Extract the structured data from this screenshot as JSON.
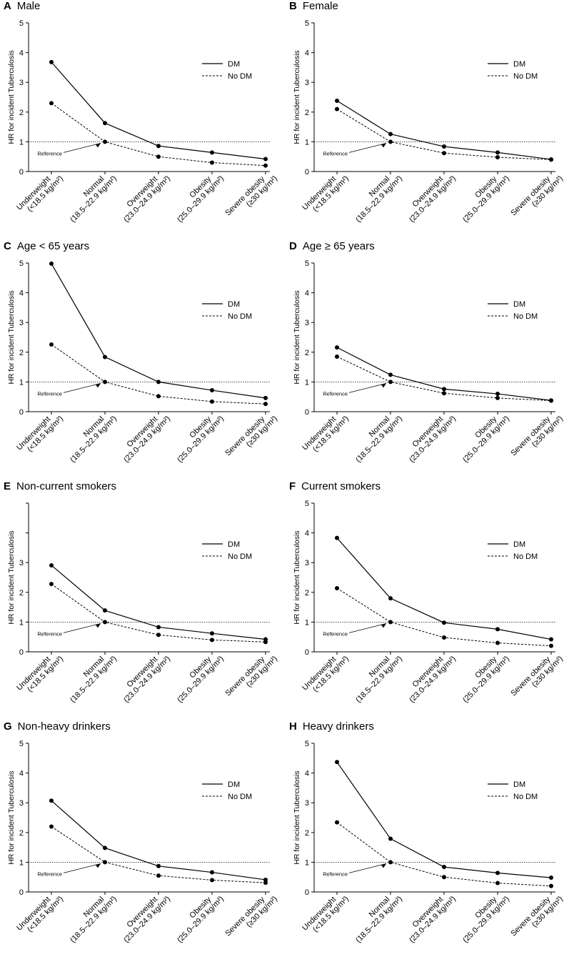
{
  "figure": {
    "legend_labels": [
      "DM",
      "No DM"
    ],
    "reference_label": "Reference",
    "ylabel": "HR for incident Tuberculosis",
    "categories": [
      {
        "line1": "Underweight",
        "line2": "(<18.5 kg/m²)"
      },
      {
        "line1": "Normal",
        "line2": "(18.5–22.9 kg/m²)"
      },
      {
        "line1": "Overweight",
        "line2": "(23.0–24.9 kg/m²)"
      },
      {
        "line1": "Obesity",
        "line2": "(25.0–29.9 kg/m²)"
      },
      {
        "line1": "Severe obesity",
        "line2": "(≥30 kg/m²)"
      }
    ]
  },
  "chart_data": [
    {
      "id": "A",
      "letter": "A",
      "title": "Male",
      "type": "line",
      "categories": [
        "Underweight (<18.5 kg/m²)",
        "Normal (18.5–22.9 kg/m²)",
        "Overweight (23.0–24.9 kg/m²)",
        "Obesity (25.0–29.9 kg/m²)",
        "Severe obesity (≥30 kg/m²)"
      ],
      "series": [
        {
          "name": "DM",
          "values": [
            3.68,
            1.63,
            0.86,
            0.64,
            0.42
          ]
        },
        {
          "name": "No DM",
          "values": [
            2.3,
            1.0,
            0.5,
            0.3,
            0.2
          ]
        }
      ],
      "ylabel": "HR for incident Tuberculosis",
      "ylim": [
        0,
        5
      ],
      "yticks": [
        "0",
        "1",
        "2",
        "3",
        "4",
        "5"
      ],
      "reference_line": 1.0
    },
    {
      "id": "B",
      "letter": "B",
      "title": "Female",
      "type": "line",
      "categories": [
        "Underweight (<18.5 kg/m²)",
        "Normal (18.5–22.9 kg/m²)",
        "Overweight (23.0–24.9 kg/m²)",
        "Obesity (25.0–29.9 kg/m²)",
        "Severe obesity (≥30 kg/m²)"
      ],
      "series": [
        {
          "name": "DM",
          "values": [
            2.38,
            1.26,
            0.84,
            0.64,
            0.41
          ]
        },
        {
          "name": "No DM",
          "values": [
            2.1,
            1.0,
            0.62,
            0.48,
            0.4
          ]
        }
      ],
      "ylabel": "HR for incident Tuberculosis",
      "ylim": [
        0,
        5
      ],
      "yticks": [
        "0",
        "1",
        "2",
        "3",
        "4",
        "5"
      ],
      "reference_line": 1.0
    },
    {
      "id": "C",
      "letter": "C",
      "title": "Age < 65 years",
      "type": "line",
      "categories": [
        "Underweight (<18.5 kg/m²)",
        "Normal (18.5–22.9 kg/m²)",
        "Overweight (23.0–24.9 kg/m²)",
        "Obesity (25.0–29.9 kg/m²)",
        "Severe obesity (≥30 kg/m²)"
      ],
      "series": [
        {
          "name": "DM",
          "values": [
            4.98,
            1.84,
            1.0,
            0.72,
            0.46
          ]
        },
        {
          "name": "No DM",
          "values": [
            2.26,
            1.0,
            0.52,
            0.34,
            0.26
          ]
        }
      ],
      "ylabel": "HR for incident Tuberculosis",
      "ylim": [
        0,
        5
      ],
      "yticks": [
        "0",
        "1",
        "2",
        "3",
        "4",
        "5"
      ],
      "reference_line": 1.0
    },
    {
      "id": "D",
      "letter": "D",
      "title": "Age ≥ 65 years",
      "type": "line",
      "categories": [
        "Underweight (<18.5 kg/m²)",
        "Normal (18.5–22.9 kg/m²)",
        "Overweight (23.0–24.9 kg/m²)",
        "Obesity (25.0–29.9 kg/m²)",
        "Severe obesity (≥30 kg/m²)"
      ],
      "series": [
        {
          "name": "DM",
          "values": [
            2.16,
            1.24,
            0.76,
            0.6,
            0.38
          ]
        },
        {
          "name": "No DM",
          "values": [
            1.85,
            1.0,
            0.62,
            0.46,
            0.37
          ]
        }
      ],
      "ylabel": "HR for incident Tuberculosis",
      "ylim": [
        0,
        5
      ],
      "yticks": [
        "0",
        "1",
        "2",
        "3",
        "4",
        "5"
      ],
      "reference_line": 1.0
    },
    {
      "id": "E",
      "letter": "E",
      "title": "Non-current smokers",
      "type": "line",
      "categories": [
        "Underweight (<18.5 kg/m²)",
        "Normal (18.5–22.9 kg/m²)",
        "Overweight (23.0–24.9 kg/m²)",
        "Obesity (25.0–29.9 kg/m²)",
        "Severe obesity (≥30 kg/m²)"
      ],
      "series": [
        {
          "name": "DM",
          "values": [
            2.91,
            1.39,
            0.83,
            0.62,
            0.42
          ]
        },
        {
          "name": "No DM",
          "values": [
            2.28,
            1.0,
            0.57,
            0.4,
            0.33
          ]
        }
      ],
      "ylabel": "HR for incident Tuberculosis",
      "ylim": [
        0,
        5
      ],
      "yticks": [
        "0",
        "1",
        "2",
        "3",
        "",
        ""
      ],
      "reference_line": 1.0
    },
    {
      "id": "F",
      "letter": "F",
      "title": "Current smokers",
      "type": "line",
      "categories": [
        "Underweight (<18.5 kg/m²)",
        "Normal (18.5–22.9 kg/m²)",
        "Overweight (23.0–24.9 kg/m²)",
        "Obesity (25.0–29.9 kg/m²)",
        "Severe obesity (≥30 kg/m²)"
      ],
      "series": [
        {
          "name": "DM",
          "values": [
            3.83,
            1.8,
            0.98,
            0.76,
            0.42
          ]
        },
        {
          "name": "No DM",
          "values": [
            2.14,
            1.0,
            0.48,
            0.3,
            0.2
          ]
        }
      ],
      "ylabel": "HR for incident Tuberculosis",
      "ylim": [
        0,
        5
      ],
      "yticks": [
        "0",
        "1",
        "2",
        "3",
        "4",
        "5"
      ],
      "reference_line": 1.0
    },
    {
      "id": "G",
      "letter": "G",
      "title": "Non-heavy drinkers",
      "type": "line",
      "categories": [
        "Underweight (<18.5 kg/m²)",
        "Normal (18.5–22.9 kg/m²)",
        "Overweight (23.0–24.9 kg/m²)",
        "Obesity (25.0–29.9 kg/m²)",
        "Severe obesity (≥30 kg/m²)"
      ],
      "series": [
        {
          "name": "DM",
          "values": [
            3.07,
            1.48,
            0.87,
            0.66,
            0.41
          ]
        },
        {
          "name": "No DM",
          "values": [
            2.2,
            1.0,
            0.55,
            0.4,
            0.31
          ]
        }
      ],
      "ylabel": "HR for incident Tuberculosis",
      "ylim": [
        0,
        5
      ],
      "yticks": [
        "0",
        "1",
        "2",
        "3",
        "4",
        "5"
      ],
      "reference_line": 1.0
    },
    {
      "id": "H",
      "letter": "H",
      "title": "Heavy drinkers",
      "type": "line",
      "categories": [
        "Underweight (<18.5 kg/m²)",
        "Normal (18.5–22.9 kg/m²)",
        "Overweight (23.0–24.9 kg/m²)",
        "Obesity (25.0–29.9 kg/m²)",
        "Severe obesity (≥30 kg/m²)"
      ],
      "series": [
        {
          "name": "DM",
          "values": [
            4.37,
            1.79,
            0.84,
            0.64,
            0.48
          ]
        },
        {
          "name": "No DM",
          "values": [
            2.34,
            1.0,
            0.5,
            0.3,
            0.2
          ]
        }
      ],
      "ylabel": "HR for incident Tuberculosis",
      "ylim": [
        0,
        5
      ],
      "yticks": [
        "0",
        "1",
        "2",
        "3",
        "4",
        "5"
      ],
      "reference_line": 1.0
    }
  ]
}
